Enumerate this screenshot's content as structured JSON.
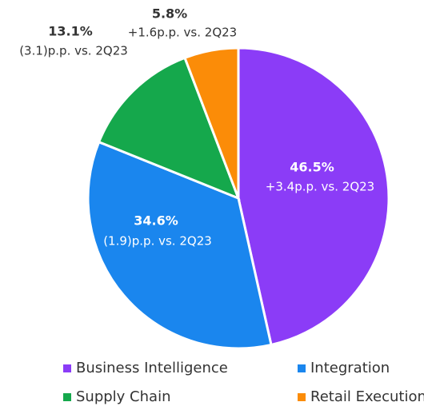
{
  "chart_data": {
    "type": "pie",
    "categories": [
      "Business Intelligence",
      "Integration",
      "Supply Chain",
      "Retail Execution"
    ],
    "values": [
      46.5,
      34.6,
      13.1,
      5.8
    ],
    "value_labels": [
      "46.5%",
      "34.6%",
      "13.1%",
      "5.8%"
    ],
    "annotations": [
      "+3.4p.p. vs. 2Q23",
      "(1.9)p.p. vs. 2Q23",
      "(3.1)p.p. vs. 2Q23",
      "+1.6p.p. vs. 2Q23"
    ],
    "colors": [
      "#8b3cf7",
      "#1a86ee",
      "#15a84c",
      "#fb8c08"
    ],
    "legend": "bottom"
  }
}
